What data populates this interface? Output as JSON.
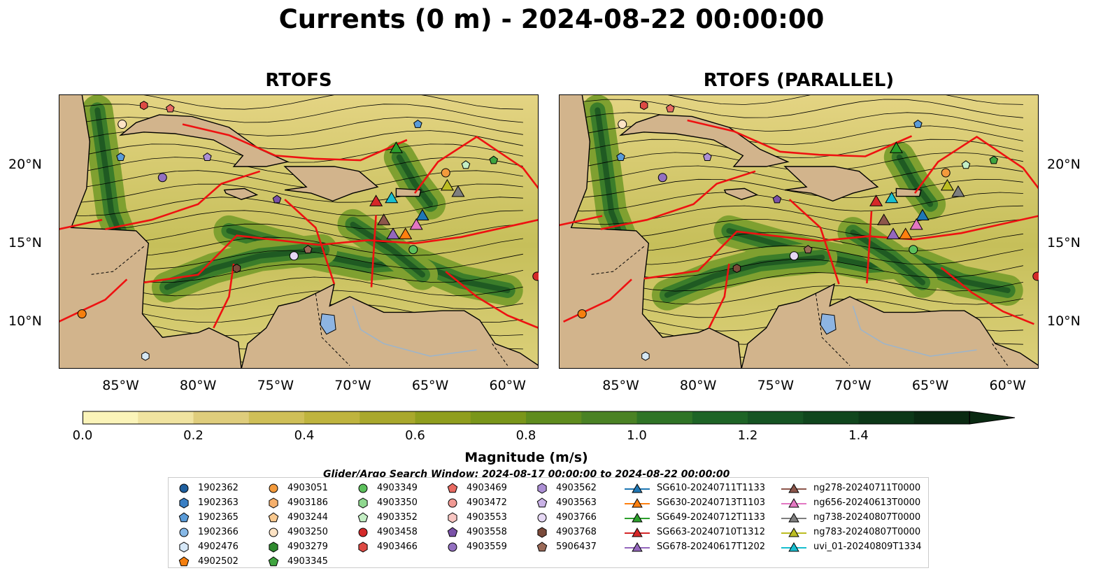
{
  "title": "Currents (0 m) - 2024-08-22 00:00:00",
  "panels": [
    {
      "title": "RTOFS"
    },
    {
      "title": "RTOFS (PARALLEL)"
    }
  ],
  "map": {
    "lon_range": [
      -89,
      -58
    ],
    "lat_range": [
      7,
      24.5
    ],
    "lon_ticks": [
      "85°W",
      "80°W",
      "75°W",
      "70°W",
      "65°W",
      "60°W"
    ],
    "lat_ticks": [
      "20°N",
      "15°N",
      "10°N"
    ],
    "colors": {
      "land": "#d2b48c",
      "ocean_low": "#f8f2b6",
      "ocean_high": "#0f3a18",
      "boundaries": "#ee1111",
      "lakes": "#8db4e2"
    }
  },
  "colorbar": {
    "label": "Magnitude (m/s)",
    "ticks": [
      "0.0",
      "0.2",
      "0.4",
      "0.6",
      "0.8",
      "1.0",
      "1.2",
      "1.4"
    ],
    "min": 0.0,
    "max": 1.6,
    "extend": "max"
  },
  "search_window": "Glider/Argo Search Window: 2024-08-17 00:00:00 to 2024-08-22 00:00:00",
  "legend": {
    "columns": [
      [
        {
          "label": "1902362",
          "marker": "circle",
          "color": "#1f5f9e"
        },
        {
          "label": "1902363",
          "marker": "hexagon",
          "color": "#3a7fc4"
        },
        {
          "label": "1902365",
          "marker": "pentagon",
          "color": "#5a9bd8"
        },
        {
          "label": "1902366",
          "marker": "circle",
          "color": "#86b8e6"
        },
        {
          "label": "4902476",
          "marker": "hexagon",
          "color": "#d6e8f8"
        },
        {
          "label": "4902502",
          "marker": "pentagon",
          "color": "#f57f0e"
        }
      ],
      [
        {
          "label": "4903051",
          "marker": "circle",
          "color": "#f39a3c"
        },
        {
          "label": "4903186",
          "marker": "hexagon",
          "color": "#f6b06c"
        },
        {
          "label": "4903244",
          "marker": "pentagon",
          "color": "#f9c98f"
        },
        {
          "label": "4903250",
          "marker": "circle",
          "color": "#fde3c4"
        },
        {
          "label": "4903279",
          "marker": "hexagon",
          "color": "#2f8a2f"
        },
        {
          "label": "4903345",
          "marker": "pentagon",
          "color": "#3fa43f"
        }
      ],
      [
        {
          "label": "4903349",
          "marker": "circle",
          "color": "#5cc05c"
        },
        {
          "label": "4903350",
          "marker": "hexagon",
          "color": "#8fd88f"
        },
        {
          "label": "4903352",
          "marker": "pentagon",
          "color": "#c4eec4"
        },
        {
          "label": "4903458",
          "marker": "circle",
          "color": "#d42a2a"
        },
        {
          "label": "4903466",
          "marker": "hexagon",
          "color": "#dd4a44"
        }
      ],
      [
        {
          "label": "4903469",
          "marker": "pentagon",
          "color": "#e86a62"
        },
        {
          "label": "4903472",
          "marker": "circle",
          "color": "#f19a94"
        },
        {
          "label": "4903553",
          "marker": "hexagon",
          "color": "#f8c6c2"
        },
        {
          "label": "4903558",
          "marker": "pentagon",
          "color": "#7a52a8"
        },
        {
          "label": "4903559",
          "marker": "circle",
          "color": "#9370c0"
        }
      ],
      [
        {
          "label": "4903562",
          "marker": "hexagon",
          "color": "#ac8fd4"
        },
        {
          "label": "4903563",
          "marker": "pentagon",
          "color": "#c9b2e6"
        },
        {
          "label": "4903766",
          "marker": "circle",
          "color": "#e6d8f4"
        },
        {
          "label": "4903768",
          "marker": "hexagon",
          "color": "#7a4a3a"
        },
        {
          "label": "5906437",
          "marker": "pentagon",
          "color": "#9a6a58"
        }
      ],
      [
        {
          "label": "SG610-20240711T1133",
          "marker": "triangle",
          "color": "#1f77b4"
        },
        {
          "label": "SG630-20240713T1103",
          "marker": "triangle",
          "color": "#ff7f0e"
        },
        {
          "label": "SG649-20240712T1133",
          "marker": "triangle",
          "color": "#2ca02c"
        },
        {
          "label": "SG663-20240710T1312",
          "marker": "triangle",
          "color": "#d62728"
        },
        {
          "label": "SG678-20240617T1202",
          "marker": "triangle",
          "color": "#9467bd"
        }
      ],
      [
        {
          "label": "ng278-20240711T0000",
          "marker": "triangle",
          "color": "#8c564b"
        },
        {
          "label": "ng656-20240613T0000",
          "marker": "triangle",
          "color": "#e377c2"
        },
        {
          "label": "ng738-20240807T0000",
          "marker": "triangle",
          "color": "#7f7f7f"
        },
        {
          "label": "ng783-20240807T0000",
          "marker": "triangle",
          "color": "#bcbd22"
        },
        {
          "label": "uvi_01-20240809T1334",
          "marker": "triangle",
          "color": "#17becf"
        }
      ]
    ]
  }
}
